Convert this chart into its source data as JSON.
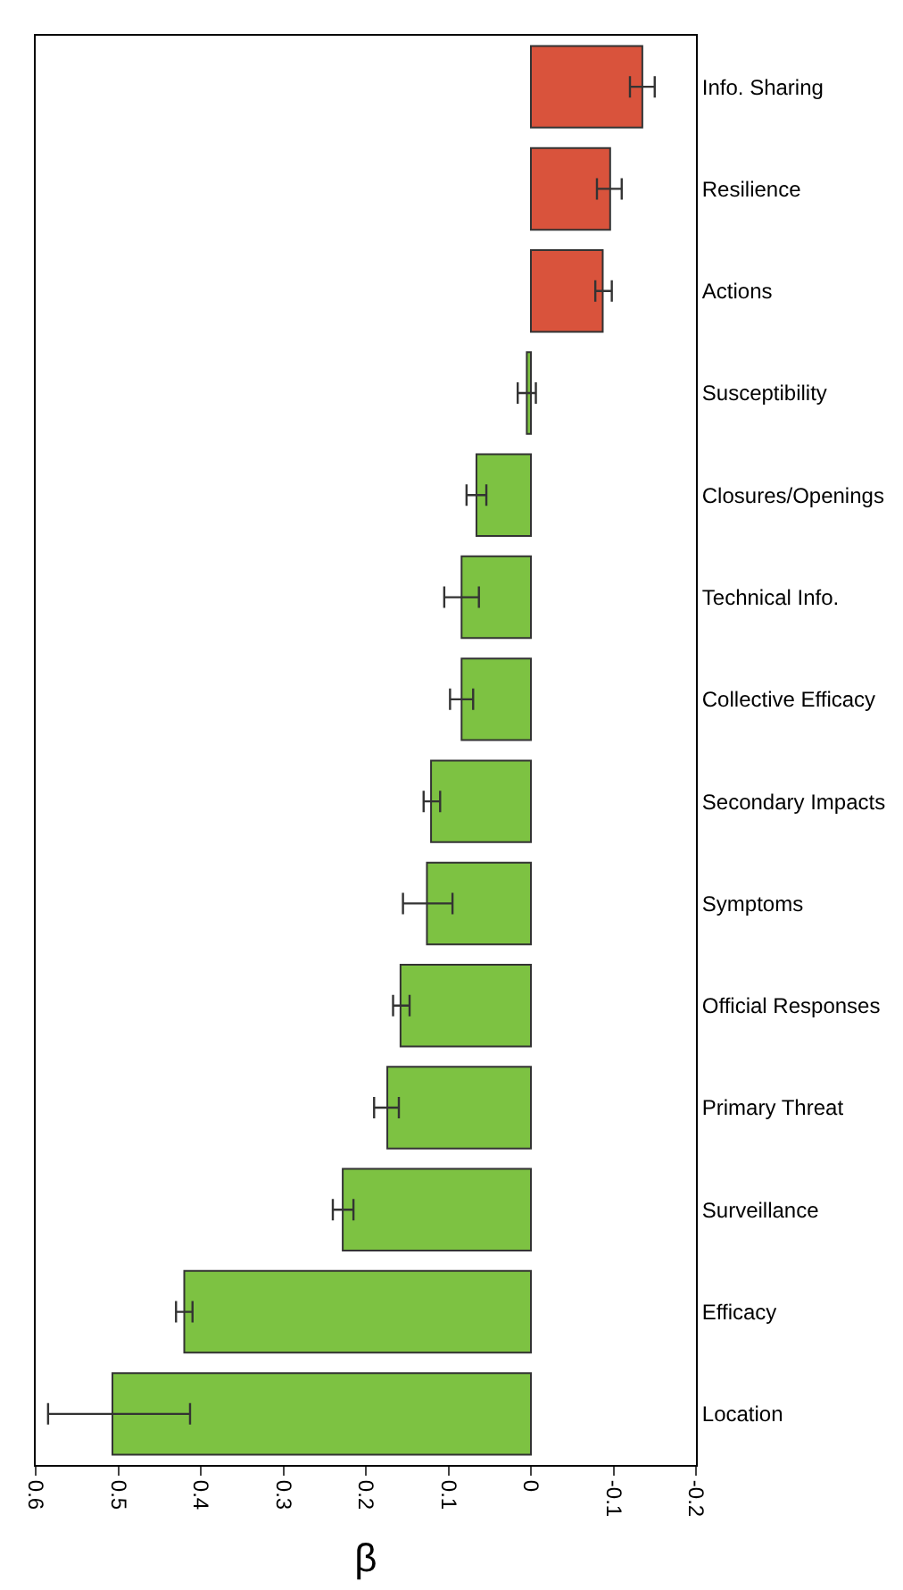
{
  "chart_data": {
    "type": "bar",
    "orientation": "horizontal",
    "xlabel": "β",
    "categories": [
      "Info. Sharing",
      "Resilience",
      "Actions",
      "Susceptibility",
      "Closures/Openings",
      "Technical Info.",
      "Collective Efficacy",
      "Secondary Impacts",
      "Symptoms",
      "Official Responses",
      "Primary Threat",
      "Surveillance",
      "Efficacy",
      "Location"
    ],
    "values": [
      -0.135,
      -0.096,
      -0.087,
      0.005,
      0.066,
      0.084,
      0.084,
      0.121,
      0.126,
      0.158,
      0.174,
      0.228,
      0.42,
      0.507
    ],
    "errors": [
      [
        -0.15,
        -0.12
      ],
      [
        -0.11,
        -0.08
      ],
      [
        -0.098,
        -0.078
      ],
      [
        -0.006,
        0.016
      ],
      [
        0.054,
        0.078
      ],
      [
        0.063,
        0.105
      ],
      [
        0.07,
        0.098
      ],
      [
        0.11,
        0.13
      ],
      [
        0.095,
        0.155
      ],
      [
        0.147,
        0.167
      ],
      [
        0.16,
        0.19
      ],
      [
        0.215,
        0.24
      ],
      [
        0.41,
        0.43
      ],
      [
        0.413,
        0.585
      ]
    ],
    "colors": [
      "#d9533c",
      "#d9533c",
      "#d9533c",
      "#7dc242",
      "#7dc242",
      "#7dc242",
      "#7dc242",
      "#7dc242",
      "#7dc242",
      "#7dc242",
      "#7dc242",
      "#7dc242",
      "#7dc242",
      "#7dc242"
    ],
    "xlim": [
      0.6,
      -0.2
    ],
    "xticks": [
      0.6,
      0.5,
      0.4,
      0.3,
      0.2,
      0.1,
      0,
      -0.1,
      -0.2
    ]
  }
}
